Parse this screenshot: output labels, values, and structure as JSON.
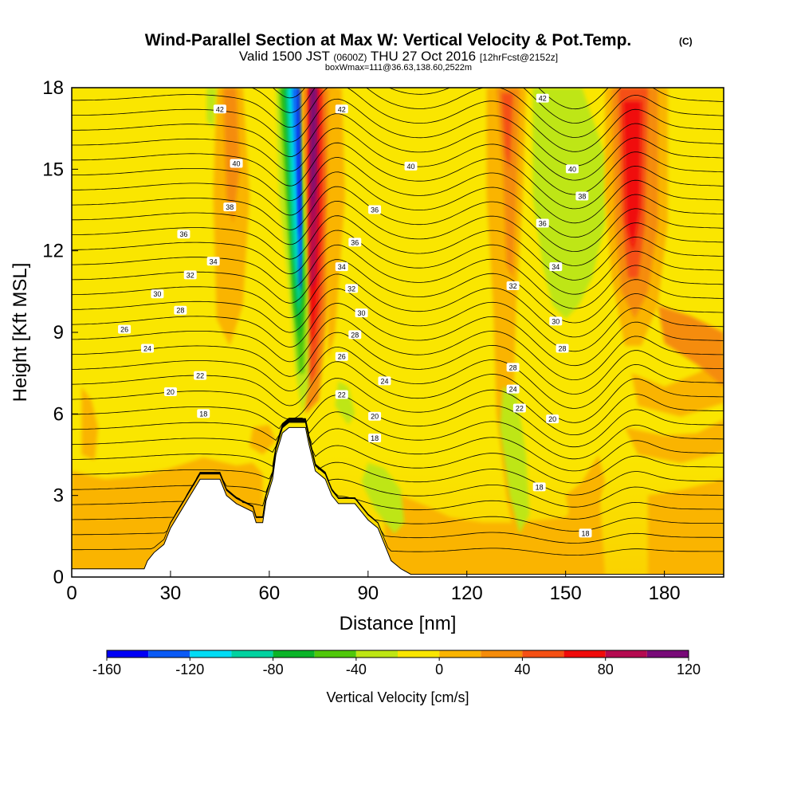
{
  "chart_data": {
    "type": "heatmap",
    "title": "Wind-Parallel Section at Max W: Vertical Velocity & Pot.Temp.",
    "title_mark": "(C)",
    "subtitle_main": "Valid 1500 JST",
    "subtitle_utc": "(0600Z)",
    "subtitle_date": "THU 27 Oct 2016",
    "subtitle_fcst": "[12hrFcst@2152z]",
    "subtitle2": "boxWmax=111@36.63,138.60,2522m",
    "xlabel": "Distance [nm]",
    "ylabel": "Height [Kft MSL]",
    "xlim": [
      0,
      198
    ],
    "ylim": [
      0,
      18
    ],
    "x_ticks": [
      "0",
      "30",
      "60",
      "90",
      "120",
      "150",
      "180"
    ],
    "y_ticks": [
      "0",
      "3",
      "6",
      "9",
      "12",
      "15",
      "18"
    ],
    "colorbar": {
      "label": "Vertical Velocity [cm/s]",
      "tick_labels": [
        "-160",
        "-120",
        "-80",
        "-40",
        "0",
        "40",
        "80",
        "120"
      ],
      "levels": [
        -160,
        -140,
        -120,
        -100,
        -80,
        -60,
        -40,
        -20,
        0,
        20,
        40,
        60,
        80,
        100,
        120
      ],
      "colors": [
        "#0000f5",
        "#0a5af5",
        "#00dcf5",
        "#00d2a0",
        "#0ab428",
        "#50c80a",
        "#bee614",
        "#fae600",
        "#fab400",
        "#f58c0a",
        "#f55014",
        "#f00a0a",
        "#b40a50",
        "#780a78"
      ]
    },
    "terrain_kft": [
      [
        0,
        0.3
      ],
      [
        22,
        0.3
      ],
      [
        23,
        0.6
      ],
      [
        25,
        0.9
      ],
      [
        28,
        1.2
      ],
      [
        30,
        1.8
      ],
      [
        33,
        2.4
      ],
      [
        36,
        3.0
      ],
      [
        39,
        3.6
      ],
      [
        45,
        3.6
      ],
      [
        47,
        3.0
      ],
      [
        50,
        2.7
      ],
      [
        55,
        2.4
      ],
      [
        56,
        2.0
      ],
      [
        58,
        2.0
      ],
      [
        59,
        2.8
      ],
      [
        61,
        3.6
      ],
      [
        62,
        4.5
      ],
      [
        64,
        5.3
      ],
      [
        66,
        5.5
      ],
      [
        71,
        5.5
      ],
      [
        72,
        4.9
      ],
      [
        74,
        3.9
      ],
      [
        77,
        3.6
      ],
      [
        79,
        3.0
      ],
      [
        81,
        2.7
      ],
      [
        86,
        2.7
      ],
      [
        88,
        2.4
      ],
      [
        90,
        2.1
      ],
      [
        93,
        1.8
      ],
      [
        95,
        1.2
      ],
      [
        97,
        0.6
      ],
      [
        100,
        0.3
      ],
      [
        103,
        0.1
      ],
      [
        198,
        0.1
      ]
    ],
    "theta_labels": [
      {
        "v": "42",
        "x": 45,
        "y": 17.2
      },
      {
        "v": "40",
        "x": 50,
        "y": 15.2
      },
      {
        "v": "38",
        "x": 48,
        "y": 13.6
      },
      {
        "v": "36",
        "x": 34,
        "y": 12.6
      },
      {
        "v": "34",
        "x": 43,
        "y": 11.6
      },
      {
        "v": "32",
        "x": 36,
        "y": 11.1
      },
      {
        "v": "30",
        "x": 26,
        "y": 10.4
      },
      {
        "v": "28",
        "x": 33,
        "y": 9.8
      },
      {
        "v": "26",
        "x": 16,
        "y": 9.1
      },
      {
        "v": "24",
        "x": 23,
        "y": 8.4
      },
      {
        "v": "22",
        "x": 39,
        "y": 7.4
      },
      {
        "v": "20",
        "x": 30,
        "y": 6.8
      },
      {
        "v": "18",
        "x": 40,
        "y": 6.0
      },
      {
        "v": "42",
        "x": 82,
        "y": 17.2
      },
      {
        "v": "40",
        "x": 103,
        "y": 15.1
      },
      {
        "v": "36",
        "x": 92,
        "y": 13.5
      },
      {
        "v": "36",
        "x": 86,
        "y": 12.3
      },
      {
        "v": "34",
        "x": 82,
        "y": 11.4
      },
      {
        "v": "32",
        "x": 85,
        "y": 10.6
      },
      {
        "v": "30",
        "x": 88,
        "y": 9.7
      },
      {
        "v": "28",
        "x": 86,
        "y": 8.9
      },
      {
        "v": "26",
        "x": 82,
        "y": 8.1
      },
      {
        "v": "24",
        "x": 95,
        "y": 7.2
      },
      {
        "v": "22",
        "x": 82,
        "y": 6.7
      },
      {
        "v": "20",
        "x": 92,
        "y": 5.9
      },
      {
        "v": "18",
        "x": 92,
        "y": 5.1
      },
      {
        "v": "42",
        "x": 143,
        "y": 17.6
      },
      {
        "v": "40",
        "x": 152,
        "y": 15.0
      },
      {
        "v": "38",
        "x": 155,
        "y": 14.0
      },
      {
        "v": "36",
        "x": 143,
        "y": 13.0
      },
      {
        "v": "34",
        "x": 147,
        "y": 11.4
      },
      {
        "v": "32",
        "x": 134,
        "y": 10.7
      },
      {
        "v": "30",
        "x": 147,
        "y": 9.4
      },
      {
        "v": "28",
        "x": 149,
        "y": 8.4
      },
      {
        "v": "28",
        "x": 134,
        "y": 7.7
      },
      {
        "v": "24",
        "x": 134,
        "y": 6.9
      },
      {
        "v": "22",
        "x": 136,
        "y": 6.2
      },
      {
        "v": "20",
        "x": 146,
        "y": 5.8
      },
      {
        "v": "18",
        "x": 142,
        "y": 3.3
      },
      {
        "v": "18",
        "x": 156,
        "y": 1.6
      }
    ]
  }
}
